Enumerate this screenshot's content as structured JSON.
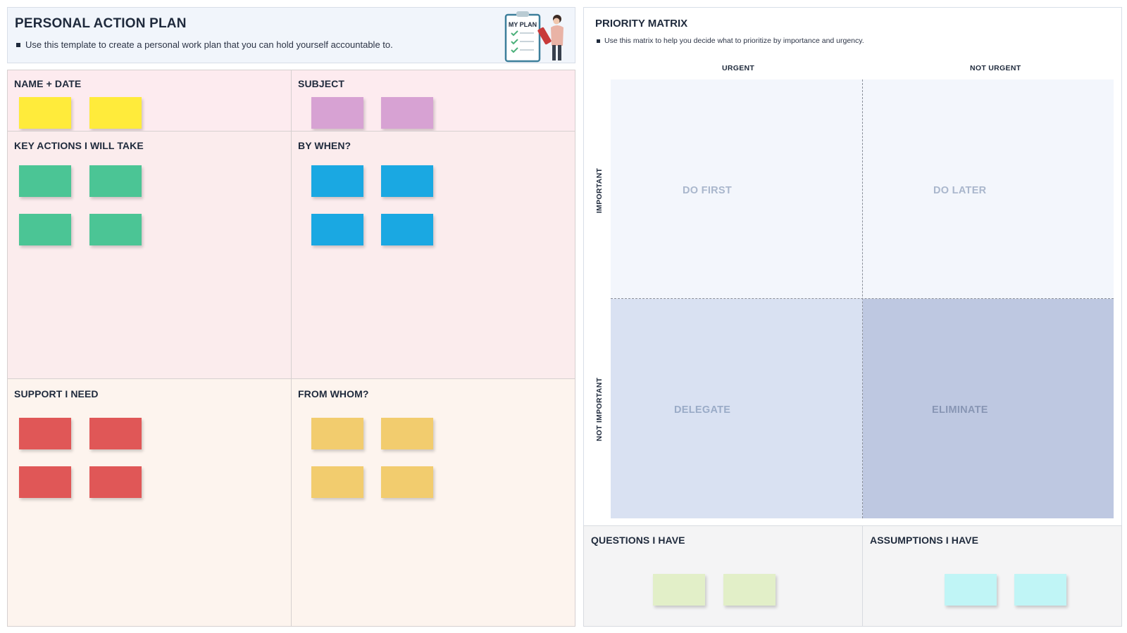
{
  "header": {
    "title": "PERSONAL ACTION PLAN",
    "description": "Use this template to create a personal work plan that you can hold yourself accountable to.",
    "illustration_text": "MY PLAN"
  },
  "plan": {
    "name_date": "NAME + DATE",
    "subject": "SUBJECT",
    "key_actions": "KEY ACTIONS I WILL TAKE",
    "by_when": "BY WHEN?",
    "support": "SUPPORT I NEED",
    "from_whom": "FROM WHOM?"
  },
  "matrix": {
    "title": "PRIORITY MATRIX",
    "description": "Use this matrix to help you decide what to prioritize by importance and urgency.",
    "col_urgent": "URGENT",
    "col_not_urgent": "NOT URGENT",
    "row_important": "IMPORTANT",
    "row_not_important": "NOT IMPORTANT",
    "do_first": "DO FIRST",
    "do_later": "DO LATER",
    "delegate": "DELEGATE",
    "eliminate": "ELIMINATE"
  },
  "bottom": {
    "questions": "QUESTIONS I HAVE",
    "assumptions": "ASSUMPTIONS I HAVE"
  },
  "colors": {
    "yellow": "#ffeb3b",
    "purple": "#d7a2d3",
    "green": "#4bc595",
    "blue": "#1aa8e2",
    "red": "#e05757",
    "gold": "#f2cc6e",
    "lime": "#e2efc8",
    "cyan": "#c0f5f6"
  }
}
